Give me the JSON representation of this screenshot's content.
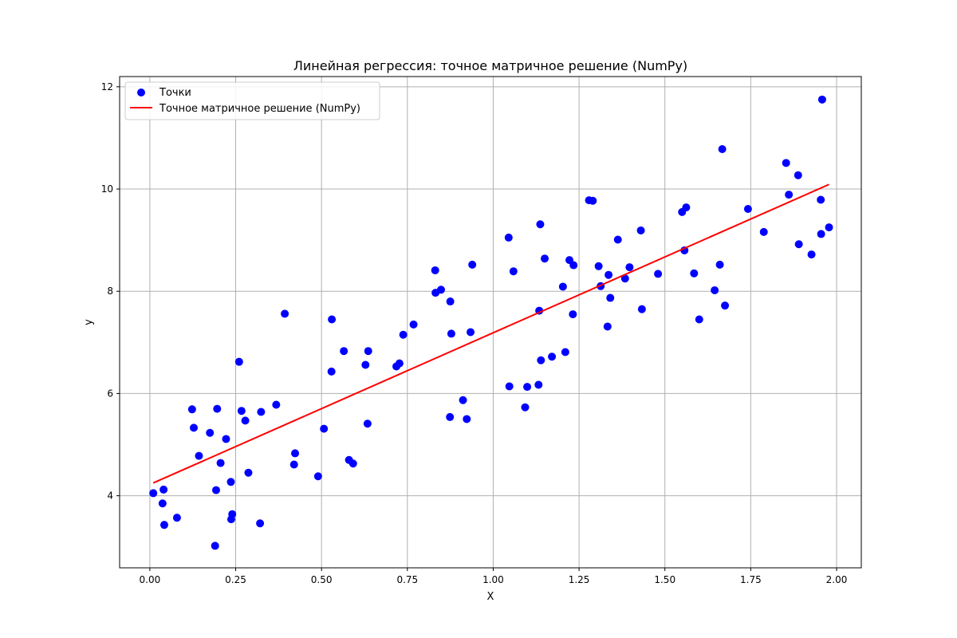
{
  "chart_data": {
    "type": "scatter",
    "title": "Линейная регрессия: точное матричное решение (NumPy)",
    "xlabel": "X",
    "ylabel": "y",
    "xlim": [
      -0.088,
      2.072
    ],
    "ylim": [
      2.59,
      12.2
    ],
    "xticks": [
      0.0,
      0.25,
      0.5,
      0.75,
      1.0,
      1.25,
      1.5,
      1.75,
      2.0
    ],
    "xtick_labels": [
      "0.00",
      "0.25",
      "0.50",
      "0.75",
      "1.00",
      "1.25",
      "1.50",
      "1.75",
      "2.00"
    ],
    "yticks": [
      4,
      6,
      8,
      10,
      12
    ],
    "ytick_labels": [
      "4",
      "6",
      "8",
      "10",
      "12"
    ],
    "grid": true,
    "legend_position": "top-left",
    "series": [
      {
        "name": "Точки",
        "kind": "scatter",
        "color": "#0000ff",
        "points": [
          [
            0.01,
            4.05
          ],
          [
            0.037,
            3.85
          ],
          [
            0.04,
            4.12
          ],
          [
            0.042,
            3.43
          ],
          [
            0.079,
            3.57
          ],
          [
            0.123,
            5.69
          ],
          [
            0.128,
            5.33
          ],
          [
            0.143,
            4.78
          ],
          [
            0.175,
            5.23
          ],
          [
            0.19,
            3.02
          ],
          [
            0.193,
            4.11
          ],
          [
            0.196,
            5.7
          ],
          [
            0.206,
            4.64
          ],
          [
            0.222,
            5.11
          ],
          [
            0.236,
            4.27
          ],
          [
            0.237,
            3.54
          ],
          [
            0.24,
            3.64
          ],
          [
            0.26,
            6.62
          ],
          [
            0.267,
            5.66
          ],
          [
            0.278,
            5.47
          ],
          [
            0.287,
            4.45
          ],
          [
            0.321,
            3.46
          ],
          [
            0.324,
            5.64
          ],
          [
            0.368,
            5.78
          ],
          [
            0.393,
            7.56
          ],
          [
            0.42,
            4.61
          ],
          [
            0.423,
            4.83
          ],
          [
            0.49,
            4.38
          ],
          [
            0.507,
            5.31
          ],
          [
            0.529,
            6.43
          ],
          [
            0.53,
            7.45
          ],
          [
            0.565,
            6.83
          ],
          [
            0.58,
            4.7
          ],
          [
            0.592,
            4.63
          ],
          [
            0.628,
            6.56
          ],
          [
            0.634,
            5.41
          ],
          [
            0.636,
            6.83
          ],
          [
            0.718,
            6.53
          ],
          [
            0.727,
            6.59
          ],
          [
            0.738,
            7.15
          ],
          [
            0.768,
            7.35
          ],
          [
            0.831,
            8.41
          ],
          [
            0.832,
            7.97
          ],
          [
            0.848,
            8.03
          ],
          [
            0.874,
            5.54
          ],
          [
            0.875,
            7.8
          ],
          [
            0.878,
            7.17
          ],
          [
            0.912,
            5.87
          ],
          [
            0.923,
            5.5
          ],
          [
            0.934,
            7.2
          ],
          [
            0.939,
            8.52
          ],
          [
            1.045,
            9.05
          ],
          [
            1.047,
            6.14
          ],
          [
            1.059,
            8.39
          ],
          [
            1.093,
            5.73
          ],
          [
            1.099,
            6.13
          ],
          [
            1.132,
            6.17
          ],
          [
            1.134,
            7.62
          ],
          [
            1.137,
            9.31
          ],
          [
            1.139,
            6.65
          ],
          [
            1.15,
            8.64
          ],
          [
            1.171,
            6.72
          ],
          [
            1.203,
            8.09
          ],
          [
            1.21,
            6.81
          ],
          [
            1.222,
            8.61
          ],
          [
            1.232,
            7.55
          ],
          [
            1.234,
            8.51
          ],
          [
            1.279,
            9.78
          ],
          [
            1.29,
            9.77
          ],
          [
            1.307,
            8.49
          ],
          [
            1.313,
            8.1
          ],
          [
            1.333,
            7.31
          ],
          [
            1.336,
            8.32
          ],
          [
            1.341,
            7.87
          ],
          [
            1.363,
            9.01
          ],
          [
            1.384,
            8.25
          ],
          [
            1.397,
            8.47
          ],
          [
            1.43,
            9.19
          ],
          [
            1.433,
            7.65
          ],
          [
            1.48,
            8.34
          ],
          [
            1.55,
            9.55
          ],
          [
            1.557,
            8.8
          ],
          [
            1.562,
            9.64
          ],
          [
            1.585,
            8.35
          ],
          [
            1.6,
            7.45
          ],
          [
            1.645,
            8.02
          ],
          [
            1.66,
            8.52
          ],
          [
            1.667,
            10.78
          ],
          [
            1.675,
            7.72
          ],
          [
            1.742,
            9.61
          ],
          [
            1.788,
            9.16
          ],
          [
            1.853,
            10.51
          ],
          [
            1.861,
            9.89
          ],
          [
            1.888,
            10.27
          ],
          [
            1.89,
            8.92
          ],
          [
            1.927,
            8.72
          ],
          [
            1.954,
            9.79
          ],
          [
            1.955,
            9.12
          ],
          [
            1.958,
            11.75
          ],
          [
            1.978,
            9.25
          ]
        ]
      },
      {
        "name": "Точное матричное решение (NumPy)",
        "kind": "line",
        "color": "#ff0000",
        "points": [
          [
            0.01,
            4.25
          ],
          [
            1.978,
            10.09
          ]
        ]
      }
    ]
  }
}
